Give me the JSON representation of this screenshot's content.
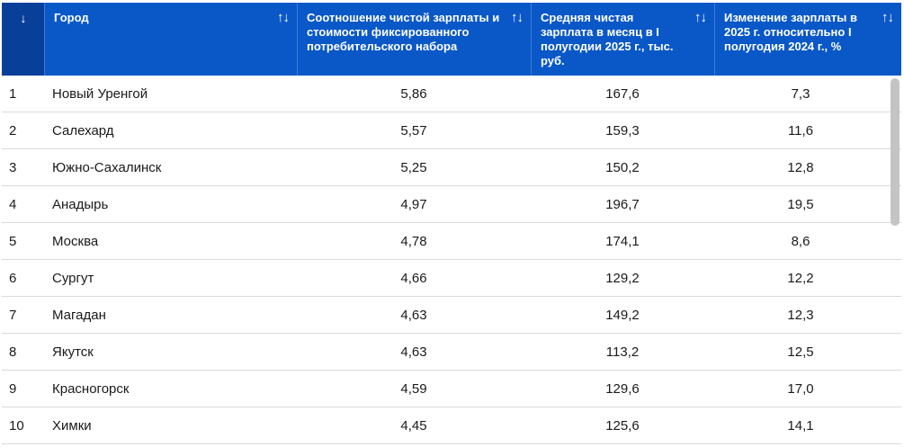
{
  "table": {
    "headers": {
      "index": "↓",
      "city": "Город",
      "ratio": "Соотношение чистой зарплаты и стоимости фиксированного потребительского набора",
      "salary": "Средняя чистая зарплата в месяц в I полугодии 2025 г., тыс. руб.",
      "change": "Изменение зарплаты в 2025 г. относительно I полугодия 2024 г., %"
    },
    "sort_glyph": "↑↓",
    "rows": [
      {
        "idx": "1",
        "city": "Новый Уренгой",
        "ratio": "5,86",
        "salary": "167,6",
        "change": "7,3"
      },
      {
        "idx": "2",
        "city": "Салехард",
        "ratio": "5,57",
        "salary": "159,3",
        "change": "11,6"
      },
      {
        "idx": "3",
        "city": "Южно-Сахалинск",
        "ratio": "5,25",
        "salary": "150,2",
        "change": "12,8"
      },
      {
        "idx": "4",
        "city": "Анадырь",
        "ratio": "4,97",
        "salary": "196,7",
        "change": "19,5"
      },
      {
        "idx": "5",
        "city": "Москва",
        "ratio": "4,78",
        "salary": "174,1",
        "change": "8,6"
      },
      {
        "idx": "6",
        "city": "Сургут",
        "ratio": "4,66",
        "salary": "129,2",
        "change": "12,2"
      },
      {
        "idx": "7",
        "city": "Магадан",
        "ratio": "4,63",
        "salary": "149,2",
        "change": "12,3"
      },
      {
        "idx": "8",
        "city": "Якутск",
        "ratio": "4,63",
        "salary": "113,2",
        "change": "12,5"
      },
      {
        "idx": "9",
        "city": "Красногорск",
        "ratio": "4,59",
        "salary": "129,6",
        "change": "17,0"
      },
      {
        "idx": "10",
        "city": "Химки",
        "ratio": "4,45",
        "salary": "125,6",
        "change": "14,1"
      }
    ]
  },
  "colors": {
    "header_bg": "#0a58c8",
    "sorted_header_bg": "#083f99",
    "row_divider": "#d9d9d9"
  }
}
